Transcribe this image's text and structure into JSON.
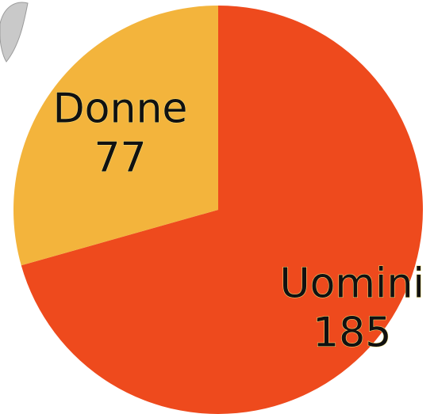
{
  "chart_data": {
    "type": "pie",
    "categories": [
      "Uomini",
      "Donne"
    ],
    "values": [
      185,
      77
    ],
    "colors": [
      "#ee4a1d",
      "#f3b43c"
    ]
  }
}
